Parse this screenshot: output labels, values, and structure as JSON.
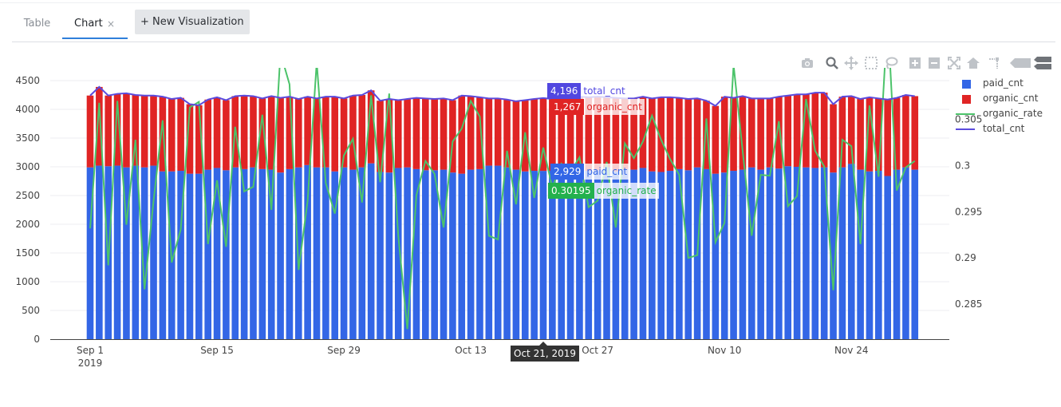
{
  "tabs": [
    {
      "label": "Table",
      "active": false
    },
    {
      "label": "Chart",
      "active": true
    }
  ],
  "tab_close_glyph": "×",
  "new_visualization_label": "+ New Visualization",
  "modebar_icons": [
    "camera-icon",
    "zoom-icon",
    "pan-icon",
    "box-select-icon",
    "lasso-icon",
    "zoom-in-icon",
    "zoom-out-icon",
    "autoscale-icon",
    "home-icon",
    "spike-lines-icon",
    "hover-closest-icon",
    "hover-compare-icon"
  ],
  "colors": {
    "paid": "#3366e6",
    "organic": "#e02424",
    "rate": "#4cc36a",
    "total": "#5b4bdd",
    "total_hover": "#5147e0",
    "rate_hover": "#23b14d"
  },
  "hover": {
    "x_label": "Oct 21, 2019",
    "items": [
      {
        "series": "total_cnt",
        "value": "4,196"
      },
      {
        "series": "organic_cnt",
        "value": "1,267"
      },
      {
        "series": "paid_cnt",
        "value": "2,929"
      },
      {
        "series": "organic_rate",
        "value": "0.30195"
      }
    ]
  },
  "chart_data": {
    "type": "bar",
    "barmode": "stack",
    "x_start": "2019-09-01",
    "x_end": "2019-11-30",
    "xticks": [
      {
        "date": "2019-09-01",
        "label": "Sep 1",
        "sublabel": "2019"
      },
      {
        "date": "2019-09-15",
        "label": "Sep 15"
      },
      {
        "date": "2019-09-29",
        "label": "Sep 29"
      },
      {
        "date": "2019-10-13",
        "label": "Oct 13"
      },
      {
        "date": "2019-10-27",
        "label": "Oct 27"
      },
      {
        "date": "2019-11-10",
        "label": "Nov 10"
      },
      {
        "date": "2019-11-24",
        "label": "Nov 24"
      }
    ],
    "yaxis": {
      "range": [
        0,
        4500
      ],
      "ticks": [
        0,
        500,
        1000,
        1500,
        2000,
        2500,
        3000,
        3500,
        4000,
        4500
      ],
      "grid": true
    },
    "y2axis": {
      "range": [
        0.2812,
        0.3092
      ],
      "ticks": [
        0.285,
        0.29,
        0.295,
        0.3,
        0.305
      ],
      "side": "right"
    },
    "legend_position": "right",
    "series": [
      {
        "name": "paid_cnt",
        "kind": "bar",
        "axis": "y",
        "values": [
          2990,
          3020,
          3010,
          3020,
          2990,
          3020,
          2990,
          3020,
          2920,
          2920,
          2930,
          2880,
          2880,
          2950,
          2980,
          2940,
          2990,
          2960,
          2990,
          2960,
          2950,
          2900,
          2960,
          2990,
          3030,
          2990,
          2990,
          2920,
          2990,
          2950,
          2990,
          3060,
          2910,
          2900,
          2980,
          2990,
          2960,
          2940,
          2940,
          2950,
          2900,
          2880,
          2950,
          2960,
          3020,
          3020,
          2990,
          2950,
          2920,
          2930,
          2929,
          2930,
          2930,
          2990,
          2930,
          2930,
          2940,
          2990,
          2920,
          2960,
          2950,
          2980,
          2920,
          2910,
          2930,
          2960,
          2940,
          2990,
          2960,
          2880,
          2900,
          2930,
          2950,
          2990,
          2950,
          2990,
          2970,
          3010,
          3000,
          2990,
          2980,
          2990,
          2900,
          2990,
          3050,
          2950,
          2920,
          2930,
          2840,
          2950,
          2990,
          2950
        ]
      },
      {
        "name": "organic_cnt",
        "kind": "bar",
        "axis": "y",
        "values": [
          1250,
          1370,
          1230,
          1250,
          1290,
          1230,
          1250,
          1220,
          1300,
          1260,
          1270,
          1210,
          1190,
          1220,
          1230,
          1220,
          1240,
          1280,
          1240,
          1230,
          1280,
          1300,
          1260,
          1190,
          1190,
          1200,
          1230,
          1300,
          1200,
          1290,
          1260,
          1270,
          1240,
          1280,
          1180,
          1190,
          1240,
          1250,
          1240,
          1240,
          1260,
          1360,
          1280,
          1250,
          1170,
          1170,
          1180,
          1190,
          1240,
          1250,
          1267,
          1250,
          1250,
          1260,
          1290,
          1280,
          1280,
          1220,
          1280,
          1230,
          1240,
          1240,
          1270,
          1300,
          1280,
          1240,
          1240,
          1200,
          1190,
          1180,
          1320,
          1270,
          1280,
          1200,
          1240,
          1200,
          1250,
          1230,
          1260,
          1270,
          1310,
          1300,
          1190,
          1230,
          1180,
          1230,
          1290,
          1260,
          1330,
          1250,
          1260,
          1280
        ]
      },
      {
        "name": "organic_rate",
        "kind": "line",
        "axis": "y2",
        "values": [
          0.2932,
          0.3068,
          0.2892,
          0.307,
          0.2936,
          0.3028,
          0.2866,
          0.2962,
          0.3049,
          0.2895,
          0.2931,
          0.3063,
          0.3069,
          0.2915,
          0.2984,
          0.2912,
          0.3042,
          0.2972,
          0.2977,
          0.3055,
          0.2952,
          0.3122,
          0.3088,
          0.2887,
          0.2962,
          0.3112,
          0.2981,
          0.2948,
          0.3011,
          0.3029,
          0.296,
          0.3076,
          0.2982,
          0.3078,
          0.2924,
          0.2823,
          0.2968,
          0.3005,
          0.2991,
          0.2933,
          0.3026,
          0.304,
          0.307,
          0.3053,
          0.2924,
          0.292,
          0.3016,
          0.2958,
          0.3036,
          0.2965,
          0.30195,
          0.2976,
          0.3002,
          0.2993,
          0.3009,
          0.2955,
          0.2962,
          0.3004,
          0.2933,
          0.3024,
          0.3008,
          0.3026,
          0.3054,
          0.3028,
          0.3007,
          0.299,
          0.29,
          0.2903,
          0.3051,
          0.2917,
          0.2938,
          0.3109,
          0.3016,
          0.2924,
          0.299,
          0.2989,
          0.3048,
          0.2956,
          0.2967,
          0.3072,
          0.3016,
          0.2999,
          0.2865,
          0.3028,
          0.3021,
          0.2915,
          0.3065,
          0.2988,
          0.3161,
          0.2973,
          0.2998,
          0.3005
        ]
      },
      {
        "name": "total_cnt",
        "kind": "line",
        "axis": "y",
        "values": [
          4240,
          4390,
          4240,
          4270,
          4280,
          4250,
          4240,
          4240,
          4220,
          4180,
          4200,
          4090,
          4070,
          4170,
          4210,
          4160,
          4230,
          4240,
          4230,
          4190,
          4230,
          4200,
          4220,
          4180,
          4220,
          4190,
          4220,
          4220,
          4190,
          4240,
          4250,
          4330,
          4150,
          4180,
          4160,
          4180,
          4200,
          4190,
          4180,
          4190,
          4160,
          4240,
          4230,
          4210,
          4190,
          4190,
          4170,
          4140,
          4160,
          4180,
          4196,
          4180,
          4180,
          4250,
          4220,
          4210,
          4220,
          4210,
          4200,
          4190,
          4190,
          4220,
          4190,
          4210,
          4210,
          4200,
          4180,
          4190,
          4150,
          4060,
          4220,
          4200,
          4230,
          4190,
          4190,
          4190,
          4220,
          4240,
          4260,
          4260,
          4290,
          4290,
          4090,
          4220,
          4230,
          4180,
          4210,
          4190,
          4170,
          4200,
          4250,
          4230
        ]
      }
    ]
  }
}
